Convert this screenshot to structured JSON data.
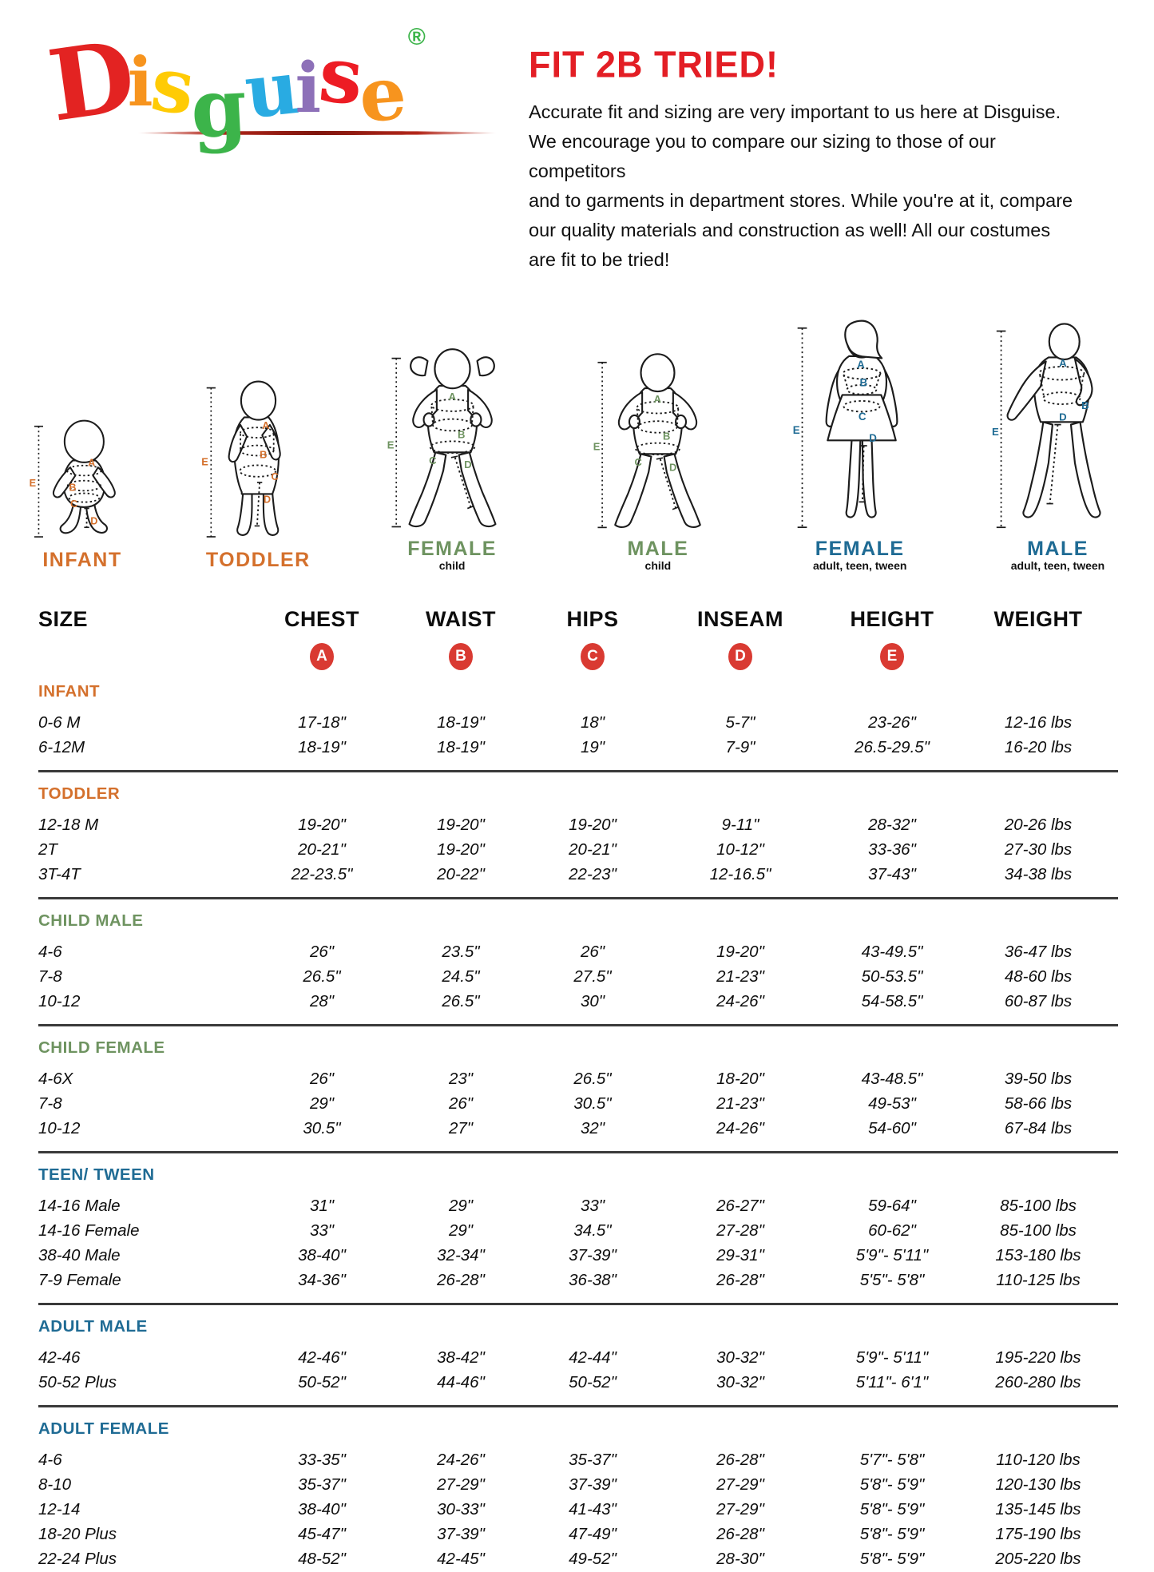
{
  "logo": {
    "letters": [
      {
        "ch": "D",
        "color": "#e32322"
      },
      {
        "ch": "i",
        "color": "#f7941e"
      },
      {
        "ch": "s",
        "color": "#ffcb05"
      },
      {
        "ch": "g",
        "color": "#3cb44a"
      },
      {
        "ch": "u",
        "color": "#29abe2"
      },
      {
        "ch": "i",
        "color": "#8d70b8"
      },
      {
        "ch": "s",
        "color": "#ed1c24"
      },
      {
        "ch": "e",
        "color": "#f7941e"
      }
    ],
    "registered": "®",
    "registered_color": "#3cb44a"
  },
  "intro": {
    "title": "FIT 2B TRIED!",
    "title_color": "#e31e25",
    "lines": [
      "Accurate fit and sizing are very important to us here at Disguise.",
      "We encourage you to compare our sizing to those of our competitors",
      "and to garments in department stores. While you're at it, compare",
      "our quality materials and construction as well! All our costumes",
      "are fit to be tried!"
    ]
  },
  "marks": {
    "chest": "A",
    "waist": "B",
    "hips": "C",
    "inseam": "D",
    "height": "E"
  },
  "figures": [
    {
      "caption": "INFANT",
      "sub": "",
      "color": "#d4702c"
    },
    {
      "caption": "TODDLER",
      "sub": "",
      "color": "#d4702c"
    },
    {
      "caption": "FEMALE",
      "sub": "child",
      "color": "#6e9360"
    },
    {
      "caption": "MALE",
      "sub": "child",
      "color": "#6e9360"
    },
    {
      "caption": "FEMALE",
      "sub": "adult, teen, tween",
      "color": "#1f6b94"
    },
    {
      "caption": "MALE",
      "sub": "adult, teen, tween",
      "color": "#1f6b94"
    }
  ],
  "colors": {
    "badge": "#d93a32"
  },
  "table": {
    "columns": [
      "SIZE",
      "CHEST",
      "WAIST",
      "HIPS",
      "INSEAM",
      "HEIGHT",
      "WEIGHT"
    ],
    "badges": [
      "A",
      "B",
      "C",
      "D",
      "E"
    ],
    "sections": [
      {
        "name": "INFANT",
        "color": "#d4702c",
        "rows": [
          [
            "0-6 M",
            "17-18\"",
            "18-19\"",
            "18\"",
            "5-7\"",
            "23-26\"",
            "12-16 lbs"
          ],
          [
            "6-12M",
            "18-19\"",
            "18-19\"",
            "19\"",
            "7-9\"",
            "26.5-29.5\"",
            "16-20 lbs"
          ]
        ]
      },
      {
        "name": "TODDLER",
        "color": "#d4702c",
        "rows": [
          [
            "12-18 M",
            "19-20\"",
            "19-20\"",
            "19-20\"",
            "9-11\"",
            "28-32\"",
            "20-26 lbs"
          ],
          [
            "2T",
            "20-21\"",
            "19-20\"",
            "20-21\"",
            "10-12\"",
            "33-36\"",
            "27-30 lbs"
          ],
          [
            "3T-4T",
            "22-23.5\"",
            "20-22\"",
            "22-23\"",
            "12-16.5\"",
            "37-43\"",
            "34-38 lbs"
          ]
        ]
      },
      {
        "name": "CHILD MALE",
        "color": "#6e9360",
        "rows": [
          [
            "4-6",
            "26\"",
            "23.5\"",
            "26\"",
            "19-20\"",
            "43-49.5\"",
            "36-47 lbs"
          ],
          [
            "7-8",
            "26.5\"",
            "24.5\"",
            "27.5\"",
            "21-23\"",
            "50-53.5\"",
            "48-60 lbs"
          ],
          [
            "10-12",
            "28\"",
            "26.5\"",
            "30\"",
            "24-26\"",
            "54-58.5\"",
            "60-87 lbs"
          ]
        ]
      },
      {
        "name": "CHILD FEMALE",
        "color": "#6e9360",
        "rows": [
          [
            "4-6X",
            "26\"",
            "23\"",
            "26.5\"",
            "18-20\"",
            "43-48.5\"",
            "39-50 lbs"
          ],
          [
            "7-8",
            "29\"",
            "26\"",
            "30.5\"",
            "21-23\"",
            "49-53\"",
            "58-66 lbs"
          ],
          [
            "10-12",
            "30.5\"",
            "27\"",
            "32\"",
            "24-26\"",
            "54-60\"",
            "67-84 lbs"
          ]
        ]
      },
      {
        "name": "TEEN/ TWEEN",
        "color": "#1f6b94",
        "rows": [
          [
            "14-16 Male",
            "31\"",
            "29\"",
            "33\"",
            "26-27\"",
            "59-64\"",
            "85-100 lbs"
          ],
          [
            "14-16 Female",
            "33\"",
            "29\"",
            "34.5\"",
            "27-28\"",
            "60-62\"",
            "85-100 lbs"
          ],
          [
            "38-40 Male",
            "38-40\"",
            "32-34\"",
            "37-39\"",
            "29-31\"",
            "5'9\"- 5'11\"",
            "153-180 lbs"
          ],
          [
            "7-9 Female",
            "34-36\"",
            "26-28\"",
            "36-38\"",
            "26-28\"",
            "5'5\"- 5'8\"",
            "110-125 lbs"
          ]
        ]
      },
      {
        "name": "ADULT MALE",
        "color": "#1f6b94",
        "rows": [
          [
            "42-46",
            "42-46\"",
            "38-42\"",
            "42-44\"",
            "30-32\"",
            "5'9\"- 5'11\"",
            "195-220 lbs"
          ],
          [
            "50-52 Plus",
            "50-52\"",
            "44-46\"",
            "50-52\"",
            "30-32\"",
            "5'11\"- 6'1\"",
            "260-280 lbs"
          ]
        ]
      },
      {
        "name": "ADULT FEMALE",
        "color": "#1f6b94",
        "rows": [
          [
            "4-6",
            "33-35\"",
            "24-26\"",
            "35-37\"",
            "26-28\"",
            "5'7\"- 5'8\"",
            "110-120 lbs"
          ],
          [
            "8-10",
            "35-37\"",
            "27-29\"",
            "37-39\"",
            "27-29\"",
            "5'8\"- 5'9\"",
            "120-130 lbs"
          ],
          [
            "12-14",
            "38-40\"",
            "30-33\"",
            "41-43\"",
            "27-29\"",
            "5'8\"- 5'9\"",
            "135-145 lbs"
          ],
          [
            "18-20 Plus",
            "45-47\"",
            "37-39\"",
            "47-49\"",
            "26-28\"",
            "5'8\"- 5'9\"",
            "175-190 lbs"
          ],
          [
            "22-24 Plus",
            "48-52\"",
            "42-45\"",
            "49-52\"",
            "28-30\"",
            "5'8\"- 5'9\"",
            "205-220 lbs"
          ]
        ]
      }
    ]
  }
}
